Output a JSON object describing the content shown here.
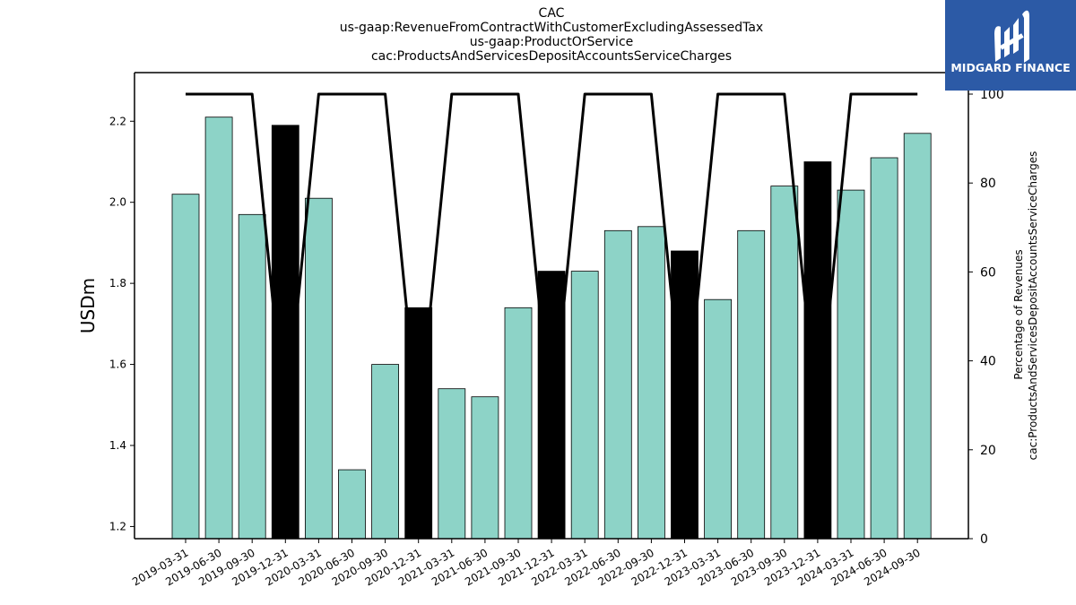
{
  "titles": [
    "CAC",
    "us-gaap:RevenueFromContractWithCustomerExcludingAssessedTax",
    "us-gaap:ProductOrService",
    "cac:ProductsAndServicesDepositAccountsServiceCharges"
  ],
  "logo": {
    "text": "MIDGARD FINANCE",
    "bg_color": "#2c5aa6"
  },
  "colors": {
    "bar": "#8dd3c7",
    "bar_highlight": "#000000",
    "line": "#000000"
  },
  "chart_data": {
    "type": "bar",
    "title": "CAC",
    "ylabel": "USDm",
    "y2label": [
      "Percentage of Revenues",
      "cac:ProductsAndServicesDepositAccountsServiceCharges"
    ],
    "ylim": [
      1.17,
      2.32
    ],
    "y2lim": [
      0,
      100
    ],
    "yticks": [
      "1.2",
      "1.4",
      "1.6",
      "1.8",
      "2.0",
      "2.2"
    ],
    "y2ticks": [
      "0",
      "20",
      "40",
      "60",
      "80",
      "100"
    ],
    "categories": [
      "2019-03-31",
      "2019-06-30",
      "2019-09-30",
      "2019-12-31",
      "2020-03-31",
      "2020-06-30",
      "2020-09-30",
      "2020-12-31",
      "2021-03-31",
      "2021-06-30",
      "2021-09-30",
      "2021-12-31",
      "2022-03-31",
      "2022-06-30",
      "2022-09-30",
      "2022-12-31",
      "2023-03-31",
      "2023-06-30",
      "2023-09-30",
      "2023-12-31",
      "2024-03-31",
      "2024-06-30",
      "2024-09-30"
    ],
    "series": [
      {
        "axis": "left",
        "values": [
          2.02,
          2.21,
          1.97,
          2.19,
          2.01,
          1.34,
          1.6,
          1.74,
          1.54,
          1.52,
          1.74,
          1.83,
          1.83,
          1.93,
          1.94,
          1.88,
          1.76,
          1.93,
          2.04,
          2.1,
          2.03,
          2.11,
          2.17
        ],
        "highlight": [
          false,
          false,
          false,
          true,
          false,
          false,
          false,
          true,
          false,
          false,
          false,
          true,
          false,
          false,
          false,
          true,
          false,
          false,
          false,
          true,
          false,
          false,
          false
        ]
      },
      {
        "axis": "right",
        "type": "line",
        "values": [
          100,
          100,
          100,
          25,
          100,
          100,
          100,
          25,
          100,
          100,
          100,
          25,
          100,
          100,
          100,
          25,
          100,
          100,
          100,
          25,
          100,
          100,
          100
        ]
      }
    ]
  }
}
